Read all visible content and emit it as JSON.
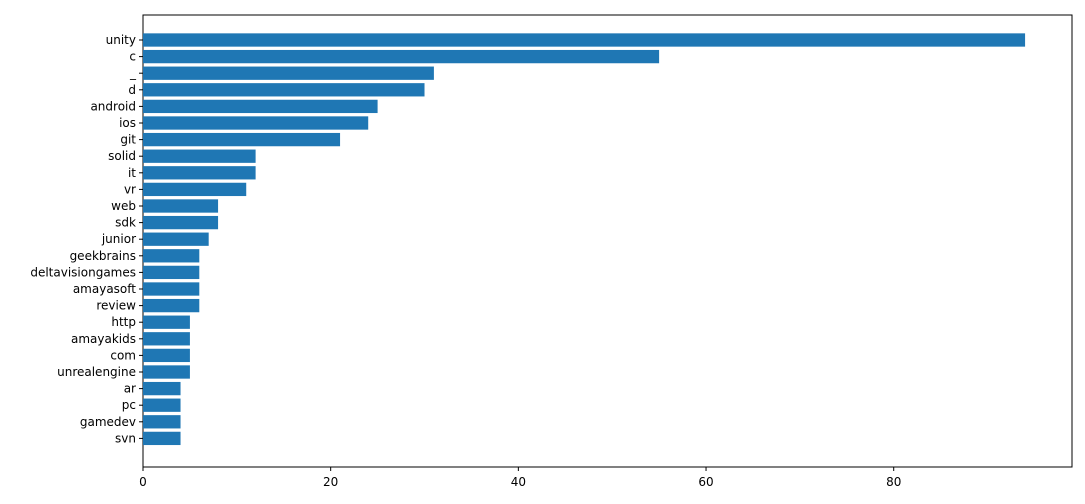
{
  "chart_data": {
    "type": "bar",
    "orientation": "horizontal",
    "categories": [
      "unity",
      "c",
      "_",
      "d",
      "android",
      "ios",
      "git",
      "solid",
      "it",
      "vr",
      "web",
      "sdk",
      "junior",
      "geekbrains",
      "deltavisiongames",
      "amayasoft",
      "review",
      "http",
      "amayakids",
      "com",
      "unrealengine",
      "ar",
      "pc",
      "gamedev",
      "svn"
    ],
    "values": [
      94,
      55,
      31,
      30,
      25,
      24,
      21,
      12,
      12,
      11,
      8,
      8,
      7,
      6,
      6,
      6,
      6,
      5,
      5,
      5,
      5,
      4,
      4,
      4,
      4
    ],
    "xlim": [
      0,
      99
    ],
    "xticks": [
      0,
      20,
      40,
      60,
      80
    ],
    "xtick_labels": [
      "0",
      "20",
      "40",
      "60",
      "80"
    ],
    "title": "",
    "xlabel": "",
    "ylabel": "",
    "grid": false,
    "bar_color": "#1f77b4"
  }
}
